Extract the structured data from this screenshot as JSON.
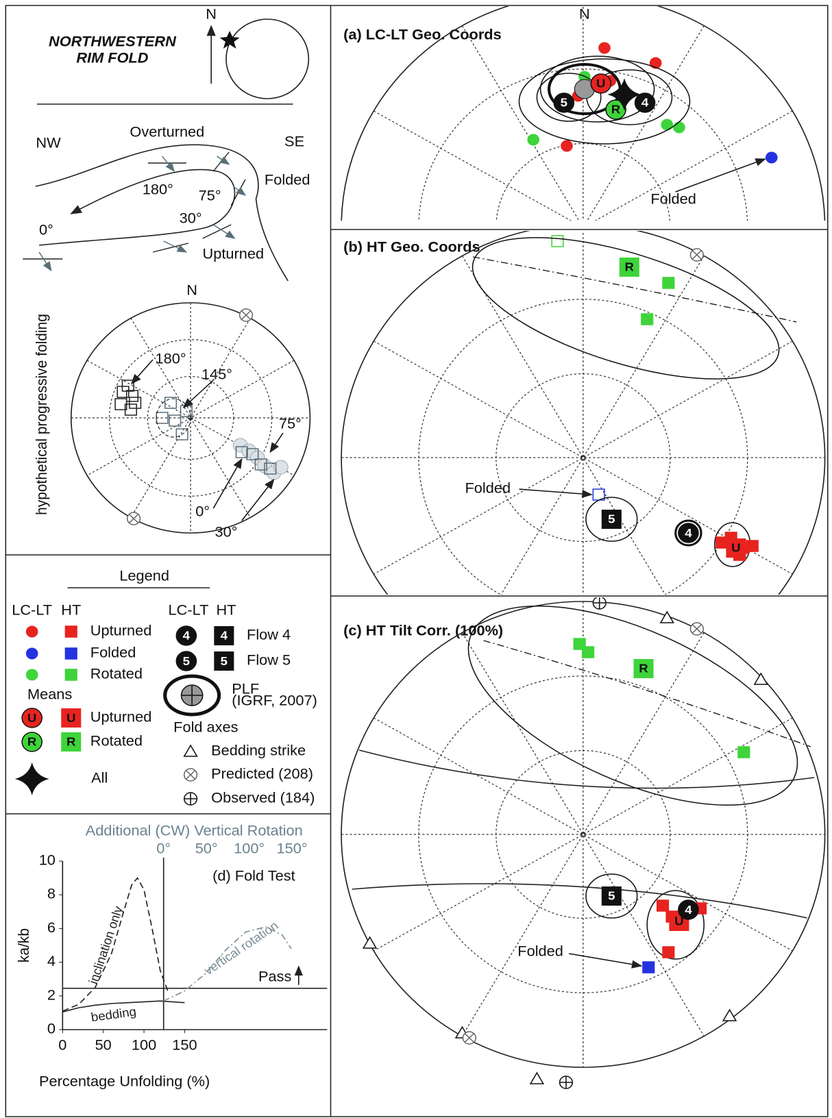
{
  "fold_sketch": {
    "title_lines": [
      "NORTHWESTERN",
      "RIM FOLD"
    ],
    "north": "N",
    "labels": {
      "nw": "NW",
      "overturned": "Overturned",
      "se": "SE",
      "a180": "180°",
      "a75": "75°",
      "folded": "Folded",
      "a30": "30°",
      "a0": "0°",
      "upturned": "Upturned"
    }
  },
  "progressive_net": {
    "side_label": "hypothetical progressive folding",
    "north": "N",
    "labels": [
      "180°",
      "145°",
      "75°",
      "0°",
      "30°"
    ]
  },
  "legend": {
    "title": "Legend",
    "col_lc": "LC-LT",
    "col_ht": "HT",
    "rows": [
      "Upturned",
      "Folded",
      "Rotated"
    ],
    "means": "Means",
    "mean_rows": [
      "Upturned",
      "Rotated"
    ],
    "all": "All",
    "flows": [
      "Flow 4",
      "Flow 5"
    ],
    "plf": [
      "PLF",
      "(IGRF, 2007)"
    ],
    "fold_axes": "Fold axes",
    "axes": [
      "Bedding strike",
      "Predicted (208)",
      "Observed (184)"
    ]
  },
  "symbols": {
    "upturned": "U",
    "rotated": "R",
    "flow4": "4",
    "flow5": "5"
  },
  "panels": [
    {
      "title": "(a) LC-LT Geo. Coords",
      "north": "N",
      "annotation": "Folded"
    },
    {
      "title": "(b) HT Geo. Coords",
      "annotation": "Folded"
    },
    {
      "title": "(c) HT Tilt Corr. (100%)",
      "annotation": "Folded"
    }
  ],
  "chart_data": {
    "type": "line",
    "title": "(d) Fold Test",
    "x2_title": "Additional (CW) Vertical Rotation",
    "xlabel": "Percentage Unfolding (%)",
    "ylabel": "ka/kb",
    "xlim": [
      0,
      325
    ],
    "xticks": [
      0,
      50,
      100,
      150
    ],
    "x2lim": [
      -118,
      191
    ],
    "x2ticks": [
      {
        "value": 0,
        "label": "0°"
      },
      {
        "value": 50,
        "label": "50°"
      },
      {
        "value": 100,
        "label": "100°"
      },
      {
        "value": 150,
        "label": "150°"
      }
    ],
    "ylim": [
      0,
      10
    ],
    "yticks": [
      0,
      2,
      4,
      6,
      8,
      10
    ],
    "pass_label": "Pass",
    "pass_threshold": 2.45,
    "series": [
      {
        "name": "inclination only",
        "color": "#222222",
        "style": "dashed",
        "x": [
          0,
          20,
          40,
          60,
          75,
          85,
          92,
          100,
          110,
          120,
          130
        ],
        "values": [
          1.1,
          1.5,
          2.5,
          4.5,
          7,
          8.6,
          9.0,
          8.3,
          6,
          3.5,
          2.2
        ]
      },
      {
        "name": "bedding",
        "color": "#222222",
        "style": "solid",
        "x": [
          0,
          20,
          40,
          60,
          80,
          100,
          120,
          150
        ],
        "values": [
          1.05,
          1.3,
          1.45,
          1.55,
          1.6,
          1.65,
          1.7,
          1.6
        ]
      },
      {
        "name": "vertical rotation",
        "color": "#7a8c95",
        "style": "dashdot",
        "x": [
          124,
          150,
          175,
          200,
          225,
          250,
          270,
          281
        ],
        "values": [
          1.7,
          2.3,
          3.3,
          4.7,
          5.8,
          6.1,
          5.6,
          4.8
        ]
      }
    ]
  }
}
